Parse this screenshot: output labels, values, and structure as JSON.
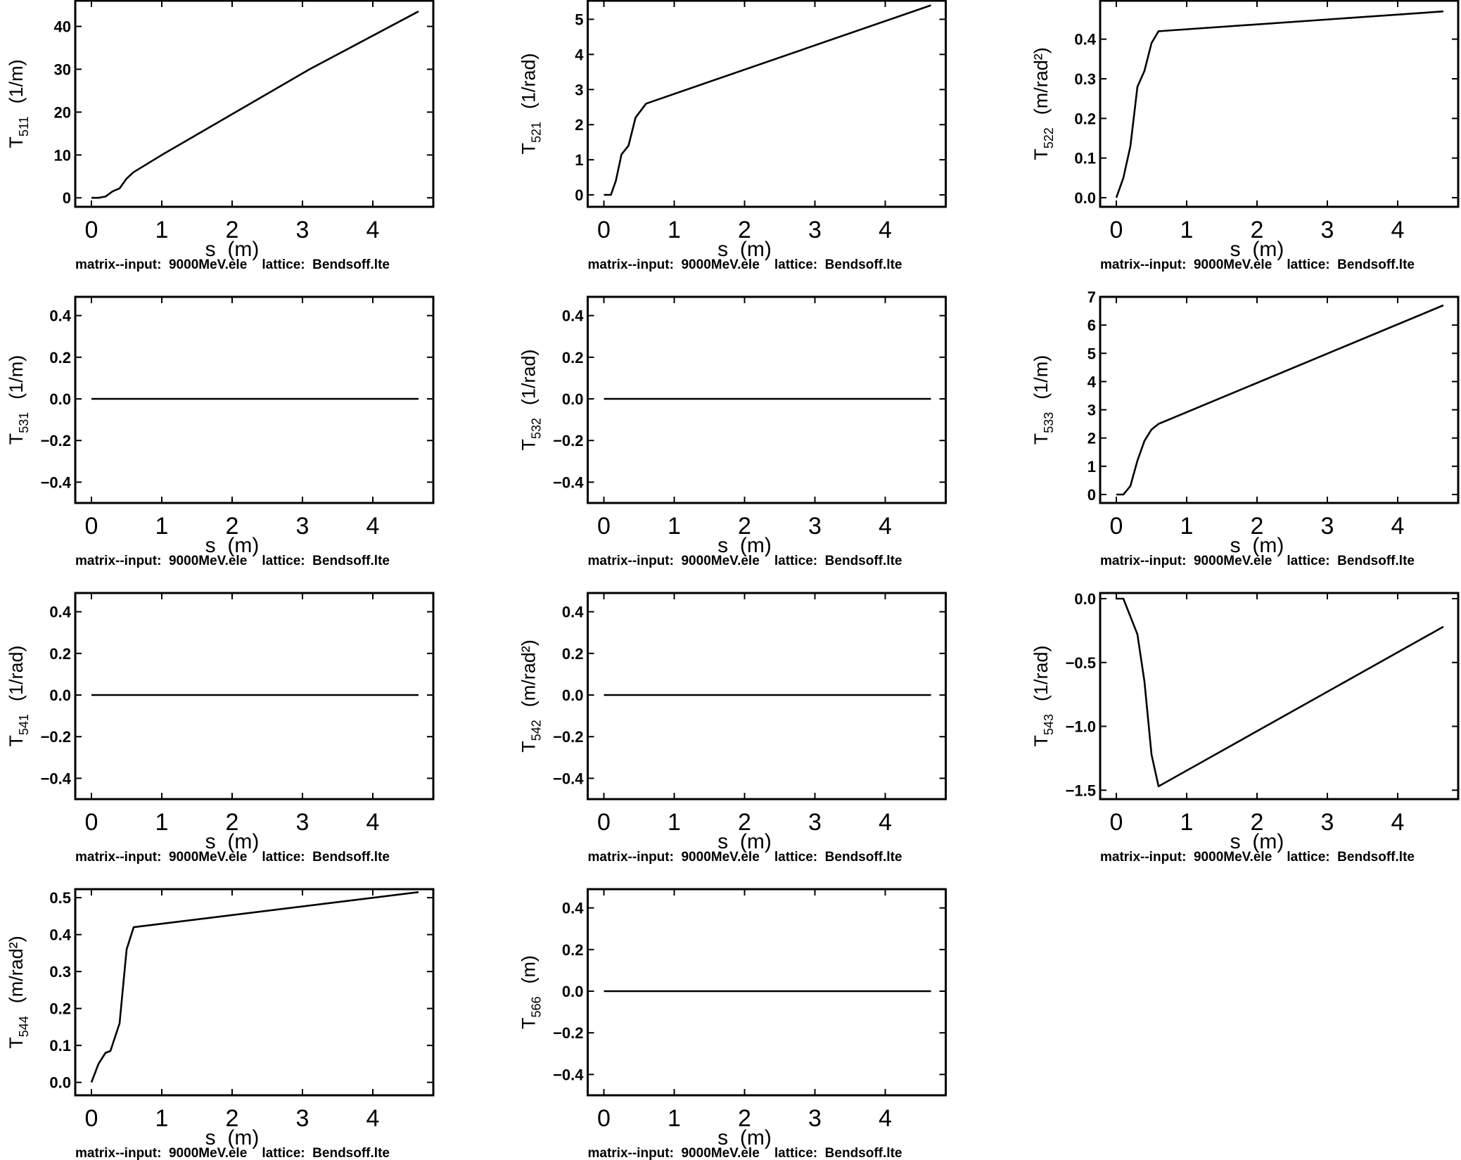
{
  "footer": "matrix--input:  9000MeV.ele    lattice:  Bendsoff.lte",
  "chart_data": [
    {
      "type": "line",
      "ylabel": {
        "symbol": "T",
        "sub": "511",
        "unit": "(1/m)"
      },
      "xlabel": "s  (m)",
      "xlim": [
        -0.23,
        4.86
      ],
      "xticks": [
        0,
        1,
        2,
        3,
        4
      ],
      "ylim": [
        -2.1,
        46
      ],
      "yticks": [
        {
          "v": 0,
          "label": "0"
        },
        {
          "v": 10,
          "label": "10"
        },
        {
          "v": 20,
          "label": "20"
        },
        {
          "v": 30,
          "label": "30"
        },
        {
          "v": 40,
          "label": "40"
        }
      ],
      "x": [
        0,
        0.1,
        0.2,
        0.3,
        0.4,
        0.5,
        0.6,
        1,
        2.05,
        3.1,
        4.65
      ],
      "y": [
        0,
        0,
        0.3,
        1.5,
        2.2,
        4.5,
        6,
        10,
        20,
        30,
        43.5
      ]
    },
    {
      "type": "line",
      "ylabel": {
        "symbol": "T",
        "sub": "521",
        "unit": "(1/rad)"
      },
      "xlabel": "s  (m)",
      "xlim": [
        -0.23,
        4.86
      ],
      "xticks": [
        0,
        1,
        2,
        3,
        4
      ],
      "ylim": [
        -0.34,
        5.53
      ],
      "yticks": [
        {
          "v": 0,
          "label": "0"
        },
        {
          "v": 1,
          "label": "1"
        },
        {
          "v": 2,
          "label": "2"
        },
        {
          "v": 3,
          "label": "3"
        },
        {
          "v": 4,
          "label": "4"
        },
        {
          "v": 5,
          "label": "5"
        }
      ],
      "x": [
        0,
        0.1,
        0.17,
        0.25,
        0.35,
        0.45,
        0.6,
        4.65
      ],
      "y": [
        0,
        0,
        0.4,
        1.15,
        1.4,
        2.2,
        2.6,
        5.4
      ]
    },
    {
      "type": "line",
      "ylabel": {
        "symbol": "T",
        "sub": "522",
        "unit": "(m/rad²)"
      },
      "xlabel": "s  (m)",
      "xlim": [
        -0.23,
        4.86
      ],
      "xticks": [
        0,
        1,
        2,
        3,
        4
      ],
      "ylim": [
        -0.023,
        0.497
      ],
      "yticks": [
        {
          "v": 0,
          "label": "0.0"
        },
        {
          "v": 0.1,
          "label": "0.1"
        },
        {
          "v": 0.2,
          "label": "0.2"
        },
        {
          "v": 0.3,
          "label": "0.3"
        },
        {
          "v": 0.4,
          "label": "0.4"
        }
      ],
      "x": [
        0,
        0.1,
        0.2,
        0.3,
        0.4,
        0.5,
        0.6,
        4.65
      ],
      "y": [
        0,
        0.05,
        0.13,
        0.28,
        0.32,
        0.39,
        0.42,
        0.47
      ]
    },
    {
      "type": "line",
      "ylabel": {
        "symbol": "T",
        "sub": "531",
        "unit": "(1/m)"
      },
      "xlabel": "s  (m)",
      "xlim": [
        -0.23,
        4.86
      ],
      "xticks": [
        0,
        1,
        2,
        3,
        4
      ],
      "ylim": [
        -0.5,
        0.49
      ],
      "yticks": [
        {
          "v": -0.4,
          "label": "−0.4"
        },
        {
          "v": -0.2,
          "label": "−0.2"
        },
        {
          "v": 0,
          "label": "0.0"
        },
        {
          "v": 0.2,
          "label": "0.2"
        },
        {
          "v": 0.4,
          "label": "0.4"
        }
      ],
      "x": [
        0,
        4.65
      ],
      "y": [
        0,
        0
      ]
    },
    {
      "type": "line",
      "ylabel": {
        "symbol": "T",
        "sub": "532",
        "unit": "(1/rad)"
      },
      "xlabel": "s  (m)",
      "xlim": [
        -0.23,
        4.86
      ],
      "xticks": [
        0,
        1,
        2,
        3,
        4
      ],
      "ylim": [
        -0.5,
        0.49
      ],
      "yticks": [
        {
          "v": -0.4,
          "label": "−0.4"
        },
        {
          "v": -0.2,
          "label": "−0.2"
        },
        {
          "v": 0,
          "label": "0.0"
        },
        {
          "v": 0.2,
          "label": "0.2"
        },
        {
          "v": 0.4,
          "label": "0.4"
        }
      ],
      "x": [
        0,
        4.65
      ],
      "y": [
        0,
        0
      ]
    },
    {
      "type": "line",
      "ylabel": {
        "symbol": "T",
        "sub": "533",
        "unit": "(1/m)"
      },
      "xlabel": "s  (m)",
      "xlim": [
        -0.23,
        4.86
      ],
      "xticks": [
        0,
        1,
        2,
        3,
        4
      ],
      "ylim": [
        -0.3,
        7.0
      ],
      "yticks": [
        {
          "v": 0,
          "label": "0"
        },
        {
          "v": 1,
          "label": "1"
        },
        {
          "v": 2,
          "label": "2"
        },
        {
          "v": 3,
          "label": "3"
        },
        {
          "v": 4,
          "label": "4"
        },
        {
          "v": 5,
          "label": "5"
        },
        {
          "v": 6,
          "label": "6"
        },
        {
          "v": 7,
          "label": "7"
        }
      ],
      "x": [
        0,
        0.1,
        0.2,
        0.3,
        0.4,
        0.5,
        0.6,
        4.65
      ],
      "y": [
        0,
        0,
        0.3,
        1.2,
        1.9,
        2.3,
        2.5,
        6.7
      ]
    },
    {
      "type": "line",
      "ylabel": {
        "symbol": "T",
        "sub": "541",
        "unit": "(1/rad)"
      },
      "xlabel": "s  (m)",
      "xlim": [
        -0.23,
        4.86
      ],
      "xticks": [
        0,
        1,
        2,
        3,
        4
      ],
      "ylim": [
        -0.5,
        0.49
      ],
      "yticks": [
        {
          "v": -0.4,
          "label": "−0.4"
        },
        {
          "v": -0.2,
          "label": "−0.2"
        },
        {
          "v": 0,
          "label": "0.0"
        },
        {
          "v": 0.2,
          "label": "0.2"
        },
        {
          "v": 0.4,
          "label": "0.4"
        }
      ],
      "x": [
        0,
        4.65
      ],
      "y": [
        0,
        0
      ]
    },
    {
      "type": "line",
      "ylabel": {
        "symbol": "T",
        "sub": "542",
        "unit": "(m/rad²)"
      },
      "xlabel": "s  (m)",
      "xlim": [
        -0.23,
        4.86
      ],
      "xticks": [
        0,
        1,
        2,
        3,
        4
      ],
      "ylim": [
        -0.5,
        0.49
      ],
      "yticks": [
        {
          "v": -0.4,
          "label": "−0.4"
        },
        {
          "v": -0.2,
          "label": "−0.2"
        },
        {
          "v": 0,
          "label": "0.0"
        },
        {
          "v": 0.2,
          "label": "0.2"
        },
        {
          "v": 0.4,
          "label": "0.4"
        }
      ],
      "x": [
        0,
        4.65
      ],
      "y": [
        0,
        0
      ]
    },
    {
      "type": "line",
      "ylabel": {
        "symbol": "T",
        "sub": "543",
        "unit": "(1/rad)"
      },
      "xlabel": "s  (m)",
      "xlim": [
        -0.23,
        4.86
      ],
      "xticks": [
        0,
        1,
        2,
        3,
        4
      ],
      "ylim": [
        -1.57,
        0.044
      ],
      "yticks": [
        {
          "v": -1.5,
          "label": "−1.5"
        },
        {
          "v": -1.0,
          "label": "−1.0"
        },
        {
          "v": -0.5,
          "label": "−0.5"
        },
        {
          "v": 0,
          "label": "0.0"
        }
      ],
      "x": [
        0,
        0.1,
        0.3,
        0.4,
        0.5,
        0.6,
        4.65
      ],
      "y": [
        0,
        0,
        -0.28,
        -0.65,
        -1.22,
        -1.47,
        -0.22
      ]
    },
    {
      "type": "line",
      "ylabel": {
        "symbol": "T",
        "sub": "544",
        "unit": "(m/rad²)"
      },
      "xlabel": "s  (m)",
      "xlim": [
        -0.23,
        4.86
      ],
      "xticks": [
        0,
        1,
        2,
        3,
        4
      ],
      "ylim": [
        -0.035,
        0.523
      ],
      "yticks": [
        {
          "v": 0,
          "label": "0.0"
        },
        {
          "v": 0.1,
          "label": "0.1"
        },
        {
          "v": 0.2,
          "label": "0.2"
        },
        {
          "v": 0.3,
          "label": "0.3"
        },
        {
          "v": 0.4,
          "label": "0.4"
        },
        {
          "v": 0.5,
          "label": "0.5"
        }
      ],
      "x": [
        0,
        0.1,
        0.2,
        0.27,
        0.4,
        0.5,
        0.6,
        4.65
      ],
      "y": [
        0,
        0.05,
        0.08,
        0.085,
        0.16,
        0.36,
        0.42,
        0.515
      ]
    },
    {
      "type": "line",
      "ylabel": {
        "symbol": "T",
        "sub": "566",
        "unit": "(m)"
      },
      "xlabel": "s  (m)",
      "xlim": [
        -0.23,
        4.86
      ],
      "xticks": [
        0,
        1,
        2,
        3,
        4
      ],
      "ylim": [
        -0.5,
        0.49
      ],
      "yticks": [
        {
          "v": -0.4,
          "label": "−0.4"
        },
        {
          "v": -0.2,
          "label": "−0.2"
        },
        {
          "v": 0,
          "label": "0.0"
        },
        {
          "v": 0.2,
          "label": "0.2"
        },
        {
          "v": 0.4,
          "label": "0.4"
        }
      ],
      "x": [
        0,
        4.65
      ],
      "y": [
        0,
        0
      ]
    }
  ]
}
